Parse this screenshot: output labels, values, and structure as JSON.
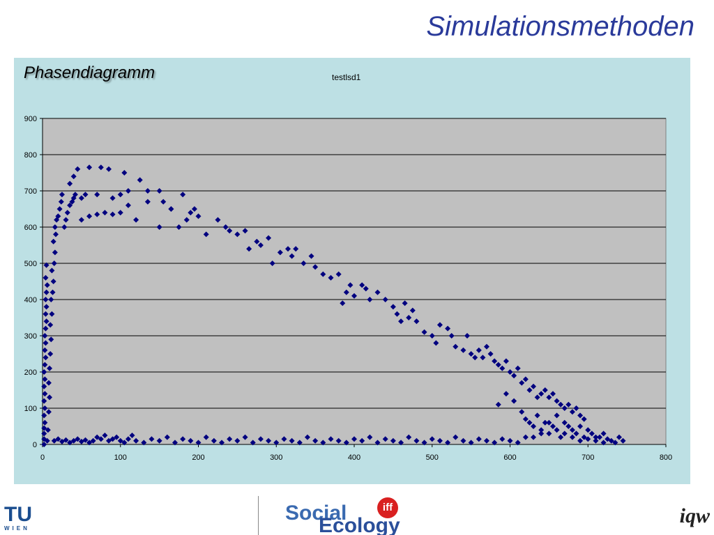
{
  "slide": {
    "title": "Simulationsmethoden",
    "panel_title": "Phasendiagramm"
  },
  "footer": {
    "left_logo_text": "TU",
    "left_logo_sub": "WIEN",
    "center_logo_social": "Social",
    "center_logo_ecology": "Ecology",
    "center_logo_badge": "iff",
    "right_logo_text": "iqw"
  },
  "colors": {
    "panel_bg": "#bde0e4",
    "plot_bg": "#c0c0c0",
    "marker": "#00007f",
    "title": "#2a3a9a"
  },
  "chart_data": {
    "type": "scatter",
    "title": "testlsd1",
    "xlabel": "",
    "ylabel": "",
    "xlim": [
      0,
      800
    ],
    "ylim": [
      0,
      900
    ],
    "xticks": [
      0,
      100,
      200,
      300,
      400,
      500,
      600,
      700,
      800
    ],
    "yticks": [
      0,
      100,
      200,
      300,
      400,
      500,
      600,
      700,
      800,
      900
    ],
    "grid": "horizontal",
    "legend": "none",
    "marker": "diamond",
    "points": [
      [
        2,
        0
      ],
      [
        2,
        15
      ],
      [
        2,
        30
      ],
      [
        2,
        45
      ],
      [
        3,
        60
      ],
      [
        2,
        80
      ],
      [
        3,
        100
      ],
      [
        2,
        120
      ],
      [
        3,
        140
      ],
      [
        2,
        160
      ],
      [
        3,
        180
      ],
      [
        2,
        200
      ],
      [
        3,
        220
      ],
      [
        4,
        240
      ],
      [
        3,
        260
      ],
      [
        4,
        280
      ],
      [
        3,
        300
      ],
      [
        4,
        320
      ],
      [
        5,
        340
      ],
      [
        4,
        360
      ],
      [
        5,
        380
      ],
      [
        4,
        400
      ],
      [
        5,
        420
      ],
      [
        6,
        440
      ],
      [
        4,
        460
      ],
      [
        5,
        495
      ],
      [
        6,
        10
      ],
      [
        7,
        40
      ],
      [
        8,
        90
      ],
      [
        9,
        130
      ],
      [
        8,
        170
      ],
      [
        9,
        210
      ],
      [
        10,
        250
      ],
      [
        11,
        290
      ],
      [
        10,
        330
      ],
      [
        12,
        360
      ],
      [
        11,
        400
      ],
      [
        13,
        420
      ],
      [
        14,
        450
      ],
      [
        12,
        480
      ],
      [
        15,
        500
      ],
      [
        16,
        530
      ],
      [
        14,
        560
      ],
      [
        17,
        580
      ],
      [
        16,
        600
      ],
      [
        18,
        620
      ],
      [
        20,
        630
      ],
      [
        22,
        650
      ],
      [
        24,
        670
      ],
      [
        25,
        690
      ],
      [
        28,
        600
      ],
      [
        30,
        620
      ],
      [
        32,
        640
      ],
      [
        35,
        660
      ],
      [
        38,
        670
      ],
      [
        40,
        680
      ],
      [
        42,
        690
      ],
      [
        35,
        720
      ],
      [
        40,
        740
      ],
      [
        45,
        760
      ],
      [
        60,
        765
      ],
      [
        75,
        765
      ],
      [
        85,
        760
      ],
      [
        50,
        680
      ],
      [
        55,
        690
      ],
      [
        70,
        690
      ],
      [
        90,
        680
      ],
      [
        100,
        690
      ],
      [
        105,
        750
      ],
      [
        110,
        700
      ],
      [
        125,
        730
      ],
      [
        135,
        670
      ],
      [
        150,
        700
      ],
      [
        155,
        670
      ],
      [
        165,
        650
      ],
      [
        180,
        690
      ],
      [
        190,
        640
      ],
      [
        50,
        620
      ],
      [
        60,
        630
      ],
      [
        70,
        635
      ],
      [
        80,
        640
      ],
      [
        90,
        635
      ],
      [
        100,
        640
      ],
      [
        110,
        660
      ],
      [
        120,
        620
      ],
      [
        135,
        700
      ],
      [
        150,
        600
      ],
      [
        165,
        650
      ],
      [
        175,
        600
      ],
      [
        185,
        620
      ],
      [
        195,
        650
      ],
      [
        200,
        630
      ],
      [
        210,
        580
      ],
      [
        225,
        620
      ],
      [
        235,
        600
      ],
      [
        240,
        590
      ],
      [
        250,
        580
      ],
      [
        260,
        590
      ],
      [
        265,
        540
      ],
      [
        275,
        560
      ],
      [
        280,
        550
      ],
      [
        290,
        570
      ],
      [
        295,
        500
      ],
      [
        305,
        530
      ],
      [
        315,
        540
      ],
      [
        320,
        520
      ],
      [
        325,
        540
      ],
      [
        335,
        500
      ],
      [
        345,
        520
      ],
      [
        350,
        490
      ],
      [
        360,
        470
      ],
      [
        370,
        460
      ],
      [
        380,
        470
      ],
      [
        385,
        390
      ],
      [
        390,
        420
      ],
      [
        395,
        440
      ],
      [
        400,
        410
      ],
      [
        410,
        440
      ],
      [
        415,
        430
      ],
      [
        420,
        400
      ],
      [
        430,
        420
      ],
      [
        440,
        400
      ],
      [
        450,
        380
      ],
      [
        455,
        360
      ],
      [
        460,
        340
      ],
      [
        465,
        390
      ],
      [
        470,
        350
      ],
      [
        475,
        370
      ],
      [
        480,
        340
      ],
      [
        490,
        310
      ],
      [
        500,
        300
      ],
      [
        505,
        280
      ],
      [
        510,
        330
      ],
      [
        520,
        320
      ],
      [
        525,
        300
      ],
      [
        530,
        270
      ],
      [
        540,
        260
      ],
      [
        545,
        300
      ],
      [
        550,
        250
      ],
      [
        555,
        240
      ],
      [
        560,
        260
      ],
      [
        565,
        240
      ],
      [
        570,
        270
      ],
      [
        575,
        250
      ],
      [
        580,
        230
      ],
      [
        585,
        220
      ],
      [
        590,
        210
      ],
      [
        595,
        230
      ],
      [
        600,
        200
      ],
      [
        605,
        190
      ],
      [
        610,
        210
      ],
      [
        615,
        170
      ],
      [
        620,
        180
      ],
      [
        625,
        150
      ],
      [
        630,
        160
      ],
      [
        635,
        130
      ],
      [
        640,
        140
      ],
      [
        645,
        150
      ],
      [
        650,
        130
      ],
      [
        655,
        140
      ],
      [
        660,
        120
      ],
      [
        665,
        110
      ],
      [
        670,
        100
      ],
      [
        675,
        110
      ],
      [
        680,
        90
      ],
      [
        685,
        100
      ],
      [
        690,
        80
      ],
      [
        695,
        70
      ],
      [
        585,
        110
      ],
      [
        595,
        140
      ],
      [
        605,
        120
      ],
      [
        615,
        90
      ],
      [
        620,
        70
      ],
      [
        625,
        60
      ],
      [
        630,
        50
      ],
      [
        635,
        80
      ],
      [
        640,
        40
      ],
      [
        645,
        60
      ],
      [
        650,
        30
      ],
      [
        655,
        50
      ],
      [
        660,
        40
      ],
      [
        665,
        20
      ],
      [
        670,
        30
      ],
      [
        675,
        50
      ],
      [
        680,
        20
      ],
      [
        685,
        30
      ],
      [
        690,
        10
      ],
      [
        695,
        20
      ],
      [
        700,
        15
      ],
      [
        705,
        30
      ],
      [
        710,
        10
      ],
      [
        715,
        20
      ],
      [
        720,
        5
      ],
      [
        725,
        15
      ],
      [
        730,
        10
      ],
      [
        735,
        5
      ],
      [
        740,
        20
      ],
      [
        745,
        10
      ],
      [
        630,
        20
      ],
      [
        640,
        30
      ],
      [
        650,
        60
      ],
      [
        660,
        80
      ],
      [
        670,
        60
      ],
      [
        680,
        40
      ],
      [
        690,
        50
      ],
      [
        700,
        40
      ],
      [
        710,
        20
      ],
      [
        720,
        30
      ],
      [
        15,
        10
      ],
      [
        20,
        15
      ],
      [
        25,
        8
      ],
      [
        30,
        12
      ],
      [
        35,
        5
      ],
      [
        40,
        10
      ],
      [
        45,
        15
      ],
      [
        50,
        8
      ],
      [
        55,
        12
      ],
      [
        60,
        5
      ],
      [
        65,
        10
      ],
      [
        70,
        20
      ],
      [
        75,
        15
      ],
      [
        80,
        25
      ],
      [
        85,
        10
      ],
      [
        90,
        15
      ],
      [
        95,
        20
      ],
      [
        100,
        10
      ],
      [
        105,
        5
      ],
      [
        110,
        15
      ],
      [
        115,
        25
      ],
      [
        120,
        10
      ],
      [
        130,
        5
      ],
      [
        140,
        15
      ],
      [
        150,
        10
      ],
      [
        160,
        20
      ],
      [
        170,
        5
      ],
      [
        180,
        15
      ],
      [
        190,
        10
      ],
      [
        200,
        5
      ],
      [
        210,
        20
      ],
      [
        220,
        10
      ],
      [
        230,
        5
      ],
      [
        240,
        15
      ],
      [
        250,
        10
      ],
      [
        260,
        20
      ],
      [
        270,
        5
      ],
      [
        280,
        15
      ],
      [
        290,
        10
      ],
      [
        300,
        5
      ],
      [
        310,
        15
      ],
      [
        320,
        10
      ],
      [
        330,
        5
      ],
      [
        340,
        20
      ],
      [
        350,
        10
      ],
      [
        360,
        5
      ],
      [
        370,
        15
      ],
      [
        380,
        10
      ],
      [
        390,
        5
      ],
      [
        400,
        15
      ],
      [
        410,
        10
      ],
      [
        420,
        20
      ],
      [
        430,
        5
      ],
      [
        440,
        15
      ],
      [
        450,
        10
      ],
      [
        460,
        5
      ],
      [
        470,
        20
      ],
      [
        480,
        10
      ],
      [
        490,
        5
      ],
      [
        500,
        15
      ],
      [
        510,
        10
      ],
      [
        520,
        5
      ],
      [
        530,
        20
      ],
      [
        540,
        10
      ],
      [
        550,
        5
      ],
      [
        560,
        15
      ],
      [
        570,
        10
      ],
      [
        580,
        5
      ],
      [
        590,
        15
      ],
      [
        600,
        10
      ],
      [
        610,
        5
      ],
      [
        620,
        20
      ]
    ]
  }
}
